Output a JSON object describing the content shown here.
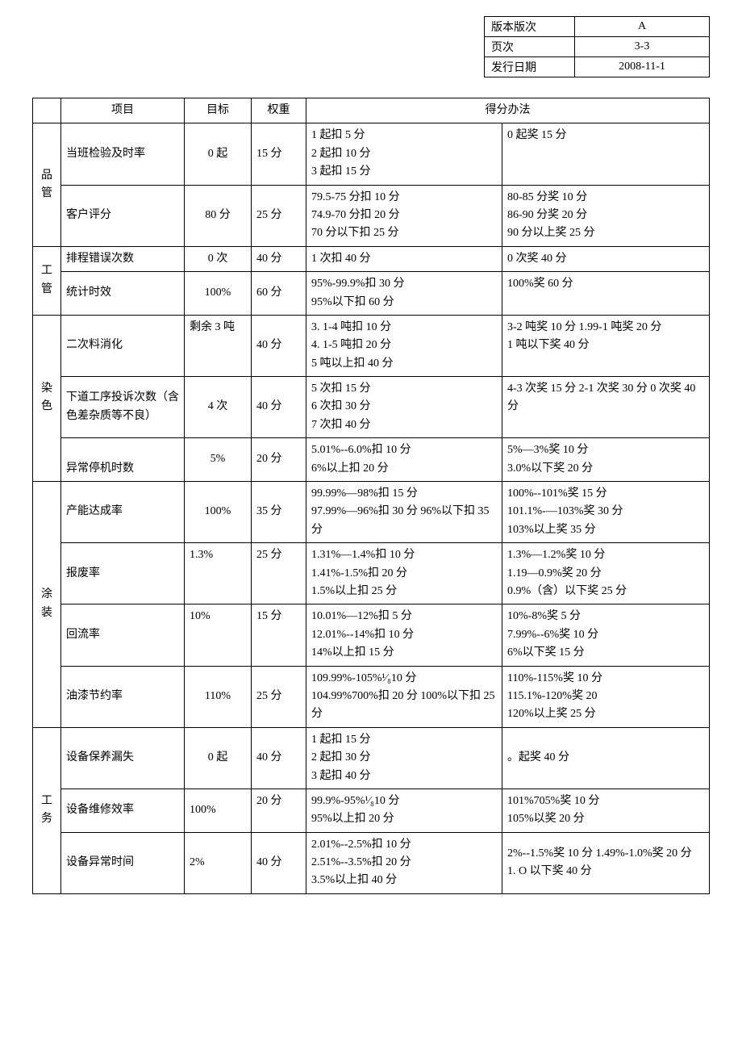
{
  "meta": {
    "version_label": "版本版次",
    "version_value": "A",
    "page_label": "页次",
    "page_value": "3-3",
    "date_label": "发行日期",
    "date_value": "2008-11-1"
  },
  "headers": {
    "item": "项目",
    "target": "目标",
    "weight": "权重",
    "method": "得分办法"
  },
  "groups": [
    {
      "name": "品管",
      "rows": [
        {
          "item": "当班检验及时率",
          "target": "0 起",
          "weight": "15 分",
          "a": "1 起扣 5 分\n2 起扣 10 分\n3 起扣 15 分",
          "b": "0 起奖 15 分"
        },
        {
          "item": "客户评分",
          "target": "80 分",
          "weight": "25 分",
          "a": "79.5-75 分扣 10 分\n74.9-70 分扣 20 分\n70 分以下扣 25 分",
          "b": "80-85 分奖 10 分\n86-90 分奖 20 分\n90 分以上奖 25 分"
        }
      ]
    },
    {
      "name": "工管",
      "rows": [
        {
          "item": "排程错误次数",
          "target": "0 次",
          "weight": "40 分",
          "a": "1 次扣 40 分",
          "b": "0 次奖 40 分"
        },
        {
          "item": "统计时效",
          "target": "100%",
          "weight": "60 分",
          "a": "95%-99.9%扣 30 分\n95%以下扣 60 分",
          "b": "100%奖 60 分"
        }
      ]
    },
    {
      "name": "染色",
      "rows": [
        {
          "item": "二次料消化",
          "target": "剩余 3 吨",
          "weight": "40 分",
          "a": "3. 1-4 吨扣 10 分\n4. 1-5 吨扣 20 分\n5 吨以上扣 40 分",
          "b": "3-2 吨奖 10 分 1.99-1 吨奖 20 分\n1 吨以下奖 40 分"
        },
        {
          "item": "下道工序投诉次数（含色差杂质等不良）",
          "target": "4 次",
          "weight": "40 分",
          "a": "5 次扣 15 分\n6 次扣 30 分\n7 次扣 40 分",
          "b": "4-3 次奖 15 分 2-1 次奖 30 分 0 次奖 40 分"
        },
        {
          "item": "异常停机时数",
          "target": "5%",
          "weight": "20 分",
          "a": "5.01%--6.0%扣 10 分\n6%以上扣 20 分",
          "b": "5%—3%奖 10 分\n3.0%以下奖 20 分"
        }
      ]
    },
    {
      "name": "涂装",
      "rows": [
        {
          "item": "产能达成率",
          "target": "100%",
          "weight": "35 分",
          "a": "99.99%—98%扣 15 分\n97.99%—96%扣 30 分 96%以下扣 35 分",
          "b": "100%--101%奖 15 分\n101.1%-—103%奖 30 分\n103%以上奖 35 分"
        },
        {
          "item": "报废率",
          "target": "1.3%",
          "weight": "25 分",
          "a": "1.31%—1.4%扣 10 分\n1.41%-1.5%扣 20 分\n1.5%以上扣 25 分",
          "b": "1.3%—1.2%奖 10 分\n1.19—0.9%奖 20 分\n0.9%（含）以下奖 25 分"
        },
        {
          "item": "回流率",
          "target": "10%",
          "weight": "15 分",
          "a": "10.01%—12%扣 5 分\n12.01%--14%扣 10 分\n14%以上扣 15 分",
          "b": "10%-8%奖 5 分\n7.99%--6%奖 10 分\n6%以下奖 15 分"
        },
        {
          "item": "油漆节约率",
          "target": "110%",
          "weight": "25 分",
          "a": "109.99%-105%¹⁄₈10 分\n104.99%700%扣 20 分 100%以下扣 25 分",
          "b": "110%-115%奖 10 分\n115.1%-120%奖 20\n120%以上奖 25 分"
        }
      ]
    },
    {
      "name": "工务",
      "rows": [
        {
          "item": "设备保养漏失",
          "target": "0 起",
          "weight": "40 分",
          "a": "1 起扣 15 分\n2 起扣 30 分\n3 起扣 40 分",
          "b": "。起奖 40 分"
        },
        {
          "item": "设备维修效率",
          "target": "100%",
          "weight": "20 分",
          "a": "99.9%-95%¹⁄₈10 分\n95%以上扣 20 分",
          "b": "101%705%奖 10 分\n105%以奖 20 分"
        },
        {
          "item": "设备异常时间",
          "target": "2%",
          "weight": "40 分",
          "a": "2.01%--2.5%扣 10 分\n2.51%--3.5%扣 20 分\n3.5%以上扣 40 分",
          "b": "2%--1.5%奖 10 分 1.49%-1.0%奖 20 分\n1. O 以下奖 40 分"
        }
      ]
    }
  ]
}
